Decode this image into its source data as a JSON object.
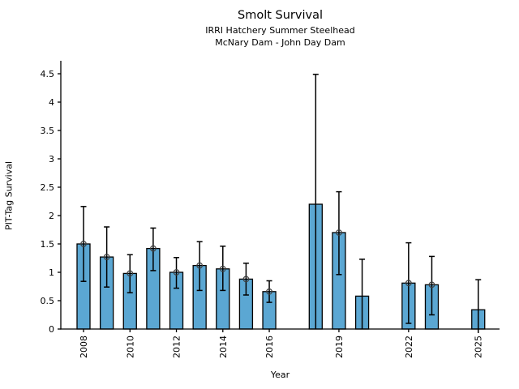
{
  "figure": {
    "title": "Smolt Survival",
    "subtitle1": "IRRI Hatchery Summer Steelhead",
    "subtitle2": "McNary Dam - John Day Dam"
  },
  "chart_data": {
    "type": "bar",
    "title": "Smolt Survival",
    "subtitle": [
      "IRRI Hatchery Summer Steelhead",
      "McNary Dam - John Day Dam"
    ],
    "xlabel": "Year",
    "ylabel": "PIT-Tag Survival",
    "xlim": [
      2007.0,
      2026.0
    ],
    "ylim": [
      0,
      4.6
    ],
    "yticks": [
      0,
      0.5,
      1,
      1.5,
      2,
      2.5,
      3,
      3.5,
      4,
      4.5
    ],
    "ytick_labels": [
      "0",
      "0.5",
      "1",
      "1.5",
      "2",
      "2.5",
      "3",
      "3.5",
      "4",
      "4.5"
    ],
    "xticks": [
      2008,
      2010,
      2012,
      2014,
      2016,
      2019,
      2022,
      2025
    ],
    "xtick_labels": [
      "2008",
      "2010",
      "2012",
      "2014",
      "2016",
      "2019",
      "2022",
      "2025"
    ],
    "grid": false,
    "legend": null,
    "colors": {
      "bar_fill": "#5ba7d3",
      "bar_edge": "#000000",
      "error_bar": "#000000",
      "marker_edge": "#404040",
      "axis": "#000000"
    },
    "marker_style": "open-circle",
    "bars": [
      {
        "year": 2008,
        "value": 1.5,
        "ci_low": 0.84,
        "ci_high": 2.16,
        "marker": true
      },
      {
        "year": 2009,
        "value": 1.27,
        "ci_low": 0.74,
        "ci_high": 1.8,
        "marker": true
      },
      {
        "year": 2010,
        "value": 0.98,
        "ci_low": 0.64,
        "ci_high": 1.31,
        "marker": true
      },
      {
        "year": 2011,
        "value": 1.42,
        "ci_low": 1.03,
        "ci_high": 1.78,
        "marker": true
      },
      {
        "year": 2012,
        "value": 1.0,
        "ci_low": 0.72,
        "ci_high": 1.26,
        "marker": true
      },
      {
        "year": 2013,
        "value": 1.12,
        "ci_low": 0.68,
        "ci_high": 1.54,
        "marker": true
      },
      {
        "year": 2014,
        "value": 1.06,
        "ci_low": 0.68,
        "ci_high": 1.46,
        "marker": true
      },
      {
        "year": 2015,
        "value": 0.88,
        "ci_low": 0.6,
        "ci_high": 1.16,
        "marker": true
      },
      {
        "year": 2016,
        "value": 0.66,
        "ci_low": 0.47,
        "ci_high": 0.85,
        "marker": true
      },
      {
        "year": 2018,
        "value": 2.2,
        "ci_low": 0.0,
        "ci_high": 4.49,
        "marker": false
      },
      {
        "year": 2019,
        "value": 1.7,
        "ci_low": 0.96,
        "ci_high": 2.42,
        "marker": true
      },
      {
        "year": 2020,
        "value": 0.58,
        "ci_low": 0.0,
        "ci_high": 1.23,
        "marker": false
      },
      {
        "year": 2022,
        "value": 0.81,
        "ci_low": 0.1,
        "ci_high": 1.52,
        "marker": true
      },
      {
        "year": 2023,
        "value": 0.78,
        "ci_low": 0.25,
        "ci_high": 1.28,
        "marker": true
      },
      {
        "year": 2025,
        "value": 0.34,
        "ci_low": -0.02,
        "ci_high": 0.87,
        "marker": false
      }
    ]
  }
}
